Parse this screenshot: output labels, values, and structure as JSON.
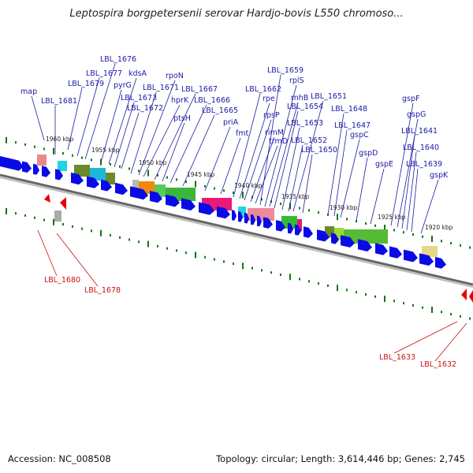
{
  "title": "Leptospira borgpetersenii serovar Hardjo-bovis L550 chromoso...",
  "footer": {
    "accession": "Accession: NC_008508",
    "summary": "Topology: circular; Length: 3,614,446 bp; Genes: 2,745"
  },
  "colors": {
    "label_blue": "#1a1aa6",
    "label_red": "#cc1111",
    "gene_blue": "#0a0ae6",
    "gene_red": "#e60000",
    "tick_green": "#117711",
    "backbone": "#777777"
  },
  "ticks": [
    "1960 kbp",
    "1955 kbp",
    "1950 kbp",
    "1945 kbp",
    "1940 kbp",
    "1935 kbp",
    "1930 kbp",
    "1925 kbp",
    "1920 kbp"
  ],
  "labels_blue": [
    "map",
    "LBL_1681",
    "LBL_1679",
    "LBL_1677",
    "LBL_1676",
    "pyrG",
    "kdsA",
    "LBL_1673",
    "LBL_1672",
    "LBL_1671",
    "rpoN",
    "hprK",
    "LBL_1667",
    "ptsH",
    "LBL_1666",
    "LBL_1665",
    "priA",
    "fmt",
    "LBL_1662",
    "rpe",
    "rpsP",
    "rimM",
    "trmD",
    "LBL_1659",
    "rplS",
    "rnhB",
    "LBL_1654",
    "LBL_1653",
    "LBL_1652",
    "LBL_1650",
    "LBL_1651",
    "LBL_1648",
    "LBL_1647",
    "gspC",
    "gspD",
    "gspE",
    "gspF",
    "gspG",
    "LBL_1641",
    "LBL_1640",
    "LBL_1639",
    "gspK"
  ],
  "labels_red": [
    "LBL_1680",
    "LBL_1678",
    "LBL_1633",
    "LBL_1632"
  ]
}
